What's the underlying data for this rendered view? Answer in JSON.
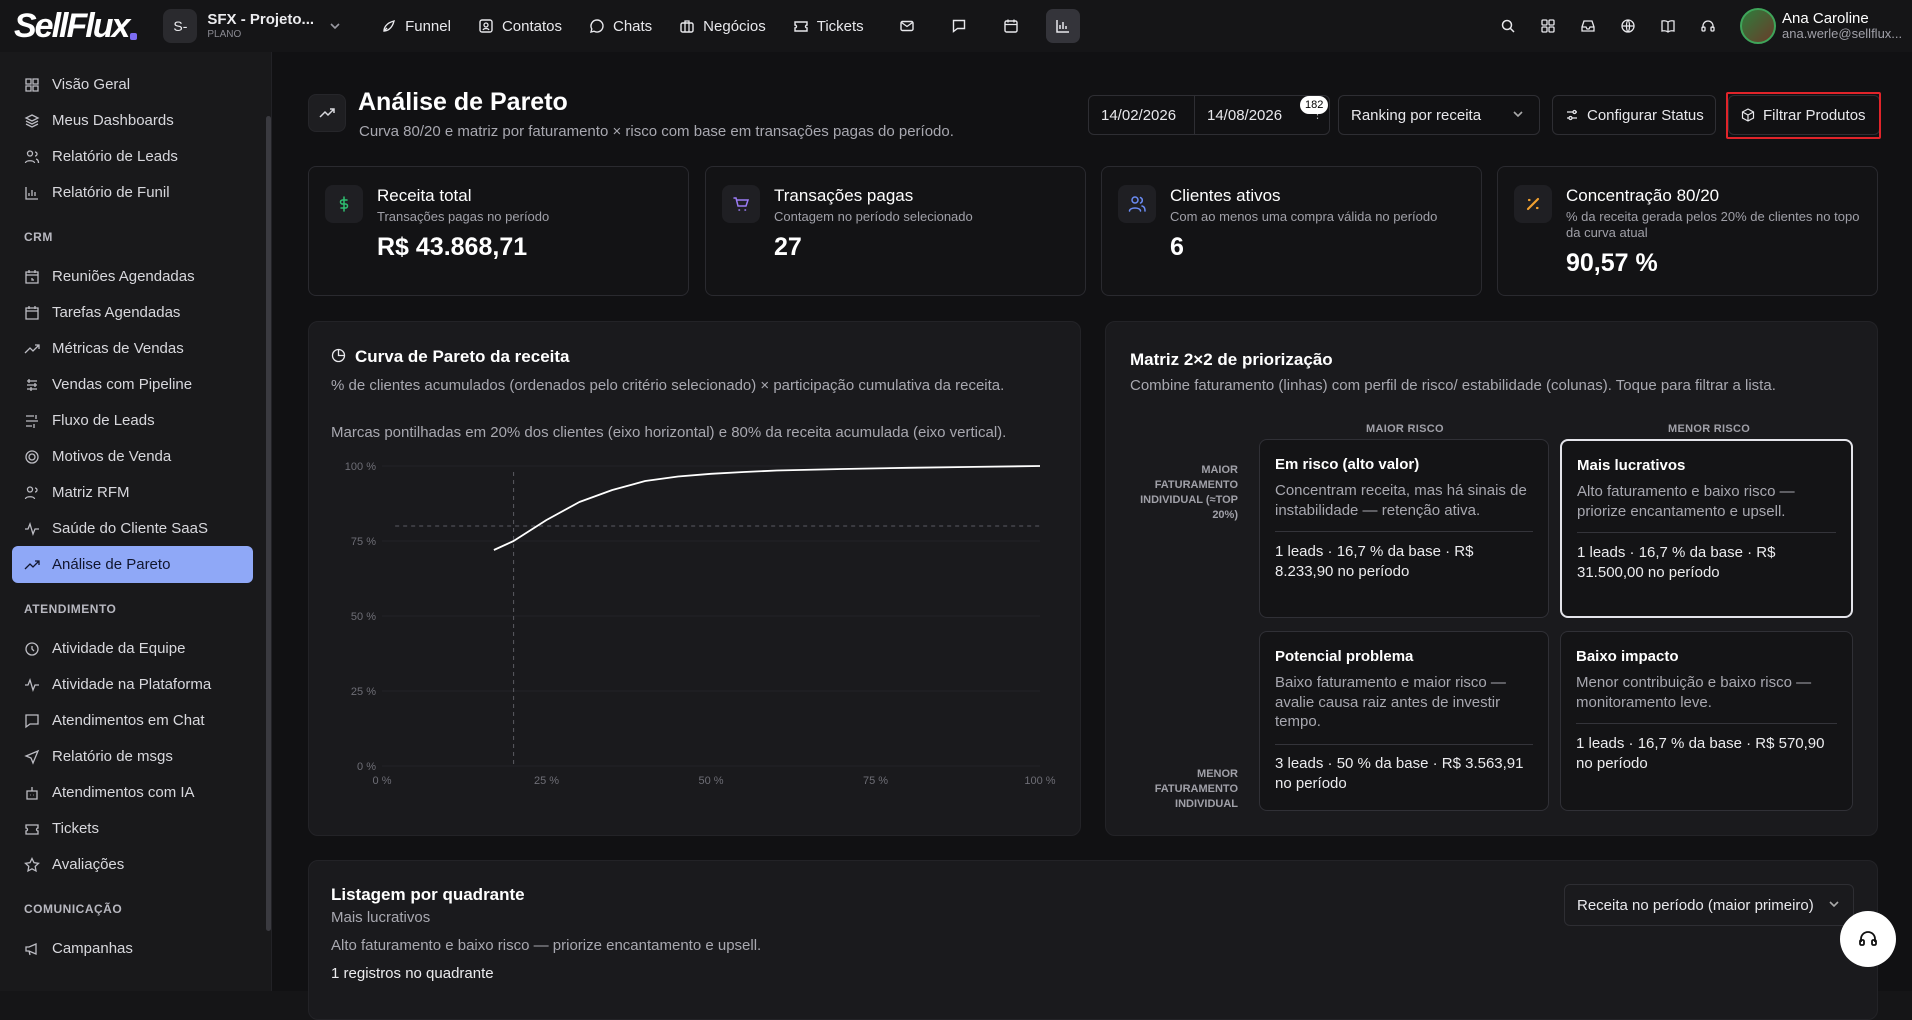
{
  "app": {
    "logo": "SellFlux"
  },
  "project": {
    "avatar": "S-",
    "name": "SFX - Projeto...",
    "plan": "PLANO"
  },
  "nav": [
    {
      "label": "Funnel",
      "icon": "rocket-icon"
    },
    {
      "label": "Contatos",
      "icon": "contacts-icon"
    },
    {
      "label": "Chats",
      "icon": "chat-icon"
    },
    {
      "label": "Negócios",
      "icon": "briefcase-icon"
    },
    {
      "label": "Tickets",
      "icon": "ticket-icon"
    }
  ],
  "user": {
    "name": "Ana Caroline",
    "email": "ana.werle@sellflux..."
  },
  "sidebar": {
    "top": [
      "Visão Geral",
      "Meus Dashboards",
      "Relatório de Leads",
      "Relatório de Funil"
    ],
    "crm_title": "CRM",
    "crm": [
      "Reuniões Agendadas",
      "Tarefas Agendadas",
      "Métricas de Vendas",
      "Vendas com Pipeline",
      "Fluxo de Leads",
      "Motivos de Venda",
      "Matriz RFM",
      "Saúde do Cliente SaaS",
      "Análise de Pareto"
    ],
    "atend_title": "ATENDIMENTO",
    "atend": [
      "Atividade da Equipe",
      "Atividade na Plataforma",
      "Atendimentos em Chat",
      "Relatório de msgs",
      "Atendimentos com IA",
      "Tickets",
      "Avaliações"
    ],
    "com_title": "COMUNICAÇÃO",
    "com": [
      "Campanhas"
    ]
  },
  "header": {
    "title": "Análise de Pareto",
    "subtitle": "Curva 80/20 e matriz por faturamento × risco com base em transações pagas do período.",
    "date_start": "14/02/2026",
    "date_end": "14/08/2026",
    "badge": "182",
    "ranking": "Ranking por receita",
    "config_btn": "Configurar Status",
    "filter_btn": "Filtrar Produtos"
  },
  "kpis": [
    {
      "title": "Receita total",
      "sub": "Transações pagas no período",
      "value": "R$ 43.868,71",
      "icon": "dollar-icon",
      "color": "#2fbf71"
    },
    {
      "title": "Transações pagas",
      "sub": "Contagem no período selecionado",
      "value": "27",
      "icon": "cart-icon",
      "color": "#9b7cf5"
    },
    {
      "title": "Clientes ativos",
      "sub": "Com ao menos uma compra válida no período",
      "value": "6",
      "icon": "users-icon",
      "color": "#6b8cf5"
    },
    {
      "title": "Concentração 80/20",
      "sub": "% da receita gerada pelos 20% de clientes no topo da curva atual",
      "value": "90,57 %",
      "icon": "percent-icon",
      "color": "#f0a030"
    }
  ],
  "pareto": {
    "title": "Curva de Pareto da receita",
    "desc1": "% de clientes acumulados (ordenados pelo critério selecionado) × participação cumulativa da receita.",
    "desc2": "Marcas pontilhadas em 20% dos clientes (eixo horizontal) e 80% da receita acumulada (eixo vertical)."
  },
  "chart_data": {
    "type": "line",
    "title": "Curva de Pareto da receita",
    "x_ticks": [
      "0 %",
      "25 %",
      "50 %",
      "75 %",
      "100 %"
    ],
    "y_ticks": [
      "0 %",
      "25 %",
      "50 %",
      "75 %",
      "100 %"
    ],
    "xlim": [
      0,
      100
    ],
    "ylim": [
      0,
      100
    ],
    "series": [
      {
        "x": [
          17,
          20,
          25,
          30,
          35,
          40,
          45,
          50,
          55,
          60,
          70,
          80,
          90,
          100
        ],
        "y": [
          72,
          75,
          82,
          88,
          92,
          95,
          96.5,
          97.4,
          98,
          98.5,
          99,
          99.4,
          99.7,
          100
        ]
      }
    ],
    "reference_lines": {
      "x": 20,
      "y": 80
    },
    "grid": true,
    "line_color": "#ffffff"
  },
  "matrix": {
    "title": "Matriz 2×2 de priorização",
    "subtitle": "Combine faturamento (linhas) com perfil de risco/ estabilidade (colunas). Toque para filtrar a lista.",
    "col_high": "MAIOR RISCO",
    "col_low": "MENOR RISCO",
    "row_high": "MAIOR FATURAMENTO INDIVIDUAL (≈TOP 20%)",
    "row_low": "MENOR FATURAMENTO INDIVIDUAL",
    "cards": [
      {
        "title": "Em risco (alto valor)",
        "desc": "Concentram receita, mas há sinais de instabilidade — retenção ativa.",
        "stats": "1 leads · 16,7 % da base · R$ 8.233,90 no período"
      },
      {
        "title": "Mais lucrativos",
        "desc": "Alto faturamento e baixo risco — priorize encantamento e upsell.",
        "stats": "1 leads · 16,7 % da base · R$ 31.500,00 no período"
      },
      {
        "title": "Potencial problema",
        "desc": "Baixo faturamento e maior risco — avalie causa raiz antes de investir tempo.",
        "stats": "3 leads · 50 % da base · R$ 3.563,91 no período"
      },
      {
        "title": "Baixo impacto",
        "desc": "Menor contribuição e baixo risco — monitoramento leve.",
        "stats": "1 leads · 16,7 % da base · R$ 570,90 no período"
      }
    ]
  },
  "listing": {
    "title": "Listagem por quadrante",
    "quadrant": "Mais lucrativos",
    "desc": "Alto faturamento e baixo risco — priorize encantamento e upsell.",
    "count": "1 registros no quadrante",
    "sort": "Receita no período (maior primeiro)"
  }
}
